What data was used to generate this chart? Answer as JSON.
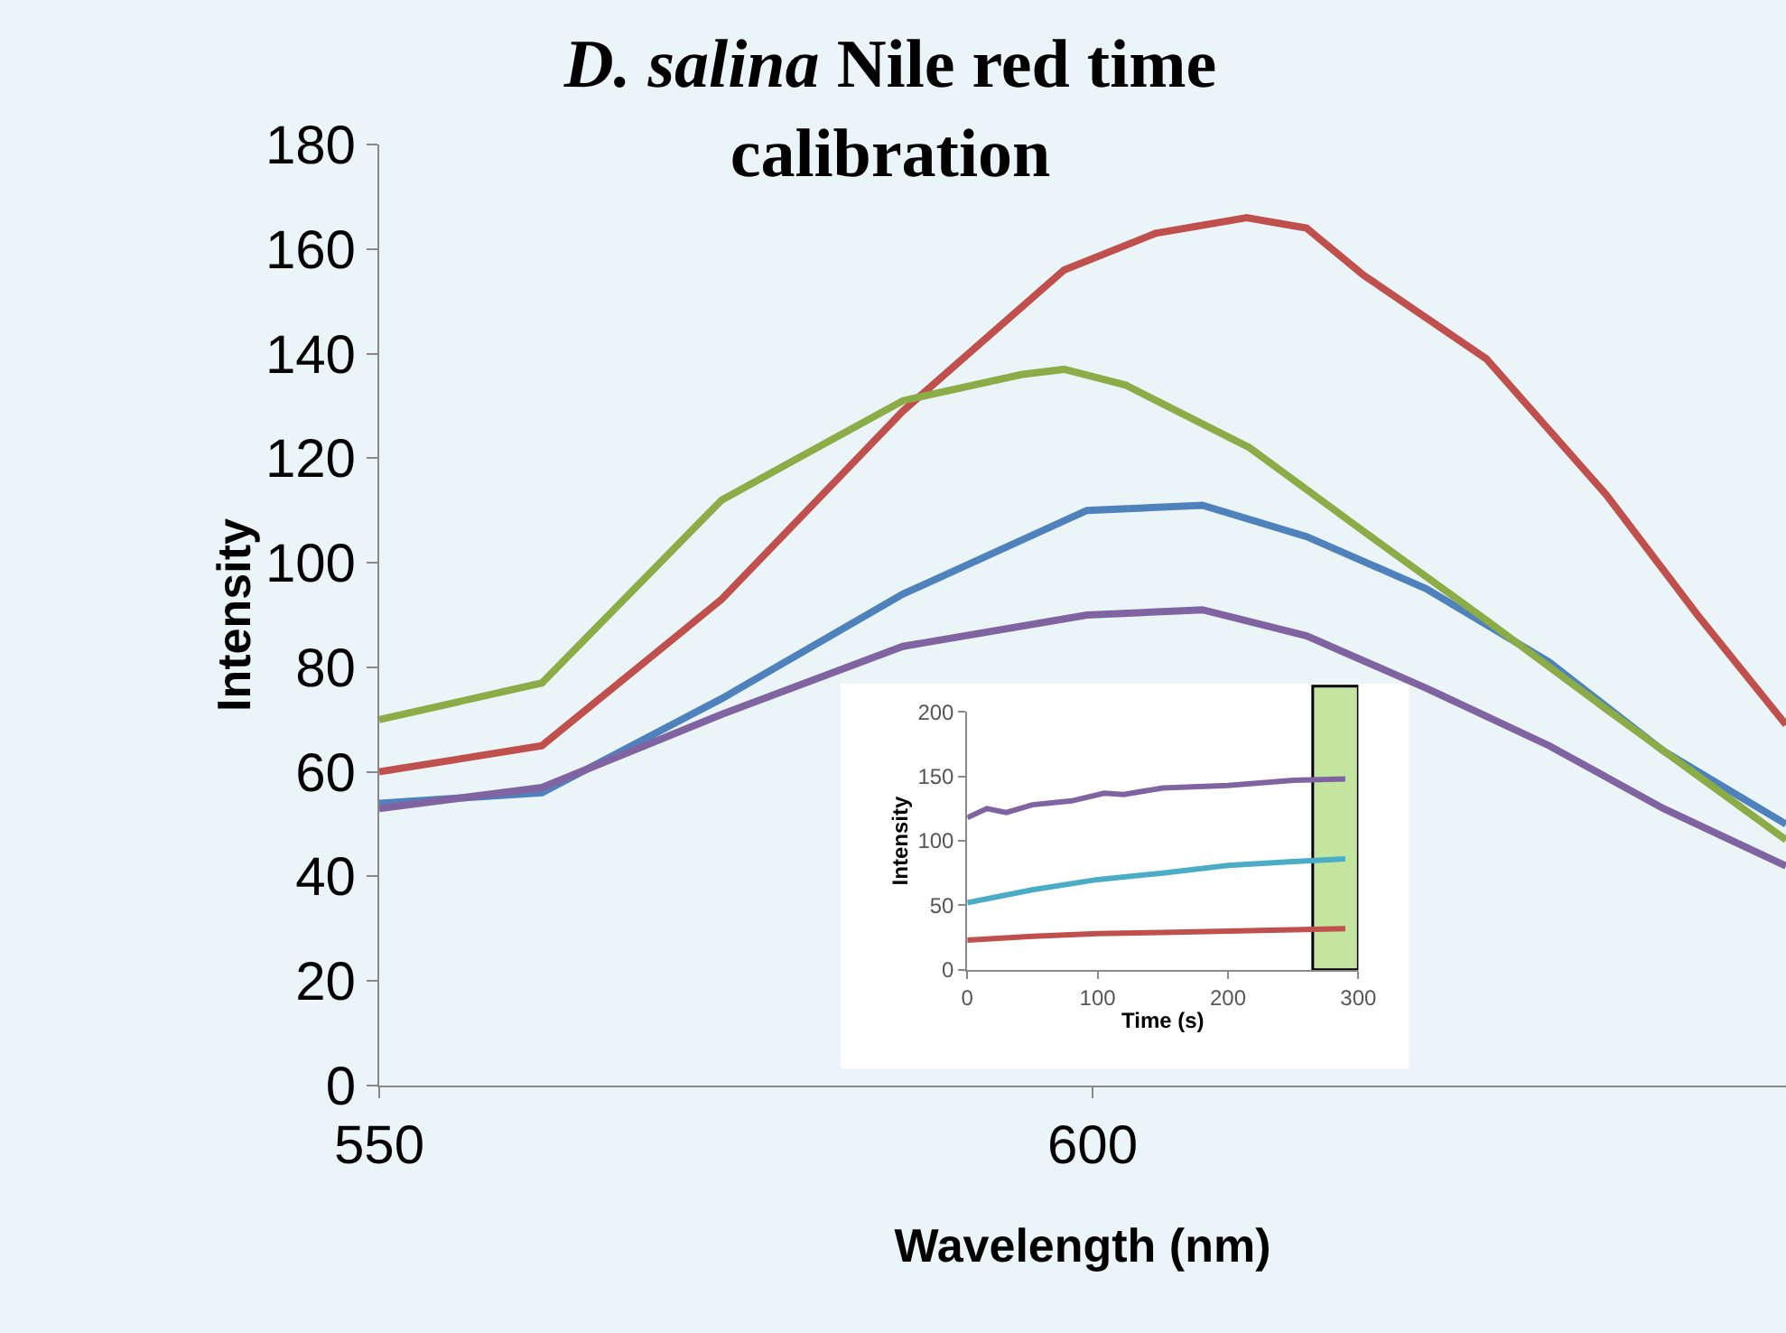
{
  "chart_data": [
    {
      "type": "line",
      "title": "D. salina Nile red time calibration",
      "xlabel": "Wavelength (nm)",
      "ylabel": "Intensity",
      "xlim": [
        550,
        648.6
      ],
      "xticks": [
        550,
        600
      ],
      "ylim": [
        0,
        180
      ],
      "yticks": [
        0,
        20,
        40,
        60,
        80,
        100,
        120,
        140,
        160,
        180
      ],
      "grid": false,
      "series": [
        {
          "color": "#4f81bd",
          "x": [
            550,
            561.4,
            574,
            586.7,
            599.6,
            607.7,
            615,
            623.4,
            632,
            640,
            648.6
          ],
          "values": [
            54,
            56,
            74,
            94,
            110,
            111,
            105,
            95,
            81,
            64,
            50
          ]
        },
        {
          "color": "#c0504d",
          "x": [
            550,
            561.4,
            574,
            586.7,
            598,
            604.4,
            610.8,
            615,
            619,
            627.6,
            636,
            642.4,
            648.6
          ],
          "values": [
            60,
            65,
            93,
            129,
            156,
            163,
            166,
            164,
            155,
            139,
            113,
            90,
            69
          ]
        },
        {
          "color": "#8cac48",
          "x": [
            550,
            561.4,
            574,
            586.7,
            595,
            598,
            602.3,
            611,
            619,
            627.6,
            636,
            648.6
          ],
          "values": [
            70,
            77,
            112,
            131,
            136,
            137,
            134,
            122,
            106,
            89,
            72,
            47
          ]
        },
        {
          "color": "#8064a2",
          "x": [
            550,
            561.4,
            574,
            586.7,
            599.6,
            607.7,
            615,
            623.4,
            632,
            640,
            648.6
          ],
          "values": [
            53,
            57,
            71,
            84,
            90,
            91,
            86,
            76,
            65,
            53,
            42
          ]
        }
      ]
    },
    {
      "type": "line",
      "xlabel": "Time (s)",
      "ylabel": "Intensity",
      "xlim": [
        0,
        300
      ],
      "xticks": [
        0,
        100,
        200,
        300
      ],
      "ylim": [
        0,
        200
      ],
      "yticks": [
        0,
        50,
        100,
        150,
        200
      ],
      "grid": false,
      "bands": [
        {
          "axis": "x",
          "from": 265,
          "to": 300,
          "color": "#c4e59f"
        }
      ],
      "series": [
        {
          "color": "#8064a2",
          "x": [
            0,
            15,
            30,
            50,
            80,
            105,
            120,
            150,
            200,
            250,
            290
          ],
          "values": [
            118,
            125,
            122,
            128,
            131,
            137,
            136,
            141,
            143,
            147,
            148
          ]
        },
        {
          "color": "#4bacc6",
          "x": [
            0,
            50,
            100,
            150,
            200,
            250,
            290
          ],
          "values": [
            52,
            62,
            70,
            75,
            81,
            84,
            86
          ]
        },
        {
          "color": "#c0504d",
          "x": [
            0,
            50,
            100,
            150,
            200,
            250,
            290
          ],
          "values": [
            23,
            26,
            28,
            29,
            30,
            31,
            32
          ]
        }
      ]
    }
  ]
}
